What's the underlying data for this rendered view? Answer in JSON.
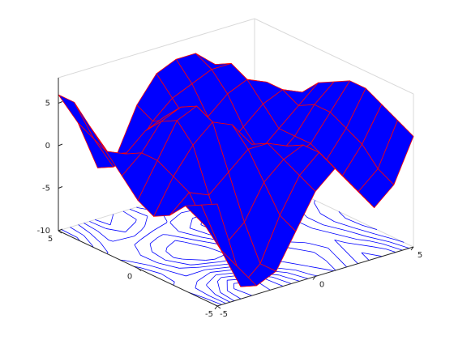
{
  "chart_data": {
    "type": "surface",
    "x": [
      -5,
      -4,
      -3,
      -2,
      -1,
      0,
      1,
      2,
      3,
      4,
      5
    ],
    "y": [
      -5,
      -4,
      -3,
      -2,
      -1,
      0,
      1,
      2,
      3,
      4,
      5
    ],
    "z": [
      [
        2,
        -6,
        -9,
        -8,
        -4,
        0,
        2,
        -1,
        -4,
        -2,
        3
      ],
      [
        1,
        -5,
        -10,
        -8,
        -3,
        1,
        3,
        0,
        -3,
        -1,
        4
      ],
      [
        0,
        -3,
        -6,
        -4,
        0,
        2,
        3,
        1,
        -2,
        1,
        5
      ],
      [
        -2,
        0,
        -1,
        1,
        3,
        3,
        2,
        0,
        -1,
        2,
        6
      ],
      [
        -3,
        1,
        4,
        6,
        5,
        2,
        0,
        -1,
        0,
        3,
        6
      ],
      [
        -2,
        2,
        6,
        7,
        4,
        0,
        -2,
        -2,
        0,
        3,
        5
      ],
      [
        0,
        2,
        5,
        6,
        2,
        -2,
        -3,
        -2,
        0,
        2,
        4
      ],
      [
        2,
        1,
        3,
        4,
        1,
        -2,
        -2,
        0,
        2,
        3,
        2
      ],
      [
        4,
        0,
        -1,
        1,
        2,
        1,
        1,
        3,
        4,
        3,
        0
      ],
      [
        6,
        1,
        -3,
        -2,
        1,
        3,
        4,
        5,
        5,
        2,
        -2
      ],
      [
        6,
        2,
        -4,
        -3,
        2,
        5,
        6,
        6,
        4,
        0,
        -4
      ]
    ],
    "xlim": [
      -5,
      5
    ],
    "ylim": [
      -5,
      5
    ],
    "zlim": [
      -10,
      8
    ],
    "xticks": [
      -5,
      0,
      5
    ],
    "yticks": [
      -5,
      0,
      5
    ],
    "zticks": [
      -10,
      -5,
      0,
      5
    ],
    "surface_color": "#0000ff",
    "mesh_color": "#ff0000",
    "contour_color": "#0000ff",
    "contours": true
  }
}
